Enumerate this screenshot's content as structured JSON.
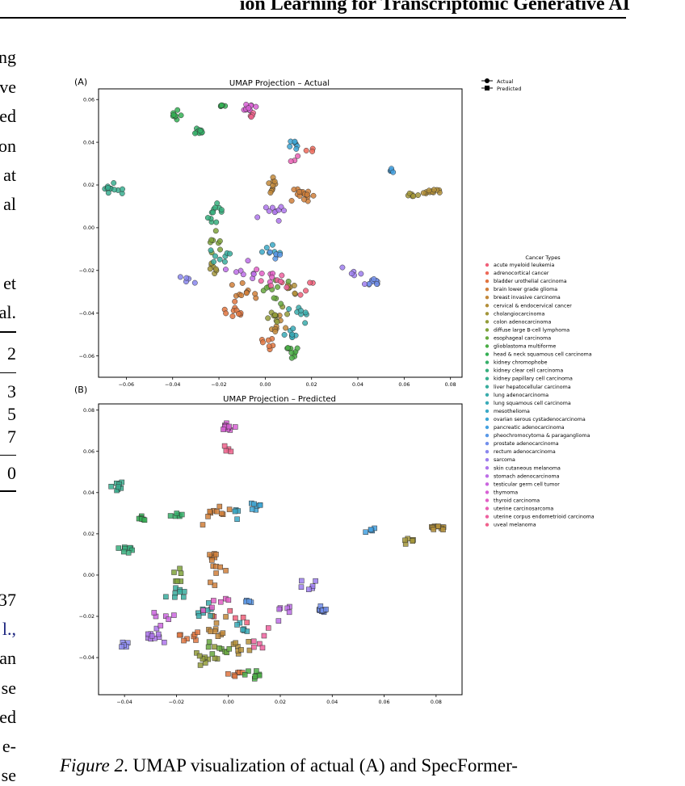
{
  "header": {
    "title": "ion Learning for Transcriptomic Generative AI"
  },
  "left_fragments": {
    "top": [
      "ng",
      "ve",
      "ed",
      "on",
      "at",
      "al"
    ],
    "middle": [
      "et",
      "al."
    ],
    "table": [
      "2",
      "3",
      "5",
      "7",
      "0"
    ],
    "bottom": [
      "37",
      "l.,",
      "an",
      "se",
      "ed",
      "e-",
      "se"
    ]
  },
  "figure": {
    "panel_a": {
      "tag": "(A)",
      "title": "UMAP Projection – Actual",
      "x_ticks": [
        "−0.06",
        "−0.04",
        "−0.02",
        "0.00",
        "0.02",
        "0.04",
        "0.06",
        "0.08"
      ],
      "y_ticks": [
        "0.06",
        "0.04",
        "0.02",
        "0.00",
        "−0.02",
        "−0.04",
        "−0.06"
      ]
    },
    "panel_b": {
      "tag": "(B)",
      "title": "UMAP Projection – Predicted",
      "x_ticks": [
        "−0.04",
        "−0.02",
        "0.00",
        "0.02",
        "0.04",
        "0.06",
        "0.08"
      ],
      "y_ticks": [
        "0.08",
        "0.06",
        "0.04",
        "0.02",
        "0.00",
        "−0.02",
        "−0.04"
      ]
    },
    "marker_legend": {
      "actual": "Actual",
      "predicted": "Predicted"
    },
    "legend": {
      "title": "Cancer Types",
      "items": [
        {
          "label": "acute myeloid leukemia",
          "color": "#f0607a"
        },
        {
          "label": "adrenocortical cancer",
          "color": "#ee6a5a"
        },
        {
          "label": "bladder urothelial carcinoma",
          "color": "#e17540"
        },
        {
          "label": "brain lower grade glioma",
          "color": "#d07f3a"
        },
        {
          "label": "breast invasive carcinoma",
          "color": "#c2883a"
        },
        {
          "label": "cervical & endocervical cancer",
          "color": "#b38f3a"
        },
        {
          "label": "cholangiocarcinoma",
          "color": "#a3963a"
        },
        {
          "label": "colon adenocarcinoma",
          "color": "#939c3a"
        },
        {
          "label": "diffuse large B-cell lymphoma",
          "color": "#7fa23a"
        },
        {
          "label": "esophageal carcinoma",
          "color": "#67a83e"
        },
        {
          "label": "glioblastoma multiforme",
          "color": "#4aad45"
        },
        {
          "label": "head & neck squamous cell carcinoma",
          "color": "#35b055"
        },
        {
          "label": "kidney chromophobe",
          "color": "#36b06a"
        },
        {
          "label": "kidney clear cell carcinoma",
          "color": "#37af7e"
        },
        {
          "label": "kidney papillary cell carcinoma",
          "color": "#38ae8f"
        },
        {
          "label": "liver hepatocellular carcinoma",
          "color": "#38ad9d"
        },
        {
          "label": "lung adenocarcinoma",
          "color": "#39acab"
        },
        {
          "label": "lung squamous cell carcinoma",
          "color": "#3aabb9"
        },
        {
          "label": "mesothelioma",
          "color": "#3ba9c7"
        },
        {
          "label": "ovarian serous cystadenocarcinoma",
          "color": "#3da6d5"
        },
        {
          "label": "pancreatic adenocarcinoma",
          "color": "#44a1e1"
        },
        {
          "label": "pheochromocytoma & paraganglioma",
          "color": "#5a99e8"
        },
        {
          "label": "prostate adenocarcinoma",
          "color": "#7390ec"
        },
        {
          "label": "rectum adenocarcinoma",
          "color": "#8a87ee"
        },
        {
          "label": "sarcoma",
          "color": "#9d7eee"
        },
        {
          "label": "skin cutaneous melanoma",
          "color": "#ae76ec"
        },
        {
          "label": "stomach adenocarcinoma",
          "color": "#bd6ee7"
        },
        {
          "label": "testicular germ cell tumor",
          "color": "#cb66df"
        },
        {
          "label": "thymoma",
          "color": "#d861d5"
        },
        {
          "label": "thyroid carcinoma",
          "color": "#e25fc7"
        },
        {
          "label": "uterine carcinosarcoma",
          "color": "#e960b4"
        },
        {
          "label": "uterine corpus endometrioid carcinoma",
          "color": "#ee619f"
        },
        {
          "label": "uveal melanoma",
          "color": "#f0628c"
        }
      ]
    }
  },
  "caption": {
    "label": "Figure 2",
    "text": ".  UMAP visualization of actual (A) and SpecFormer-"
  },
  "chart_data": [
    {
      "type": "scatter",
      "title": "UMAP Projection – Actual",
      "xlim": [
        -0.072,
        0.085
      ],
      "ylim": [
        -0.07,
        0.065
      ],
      "clusters": [
        {
          "cls": 0,
          "x": 0.01,
          "y": -0.025,
          "n": 5,
          "sx": 0.012,
          "sy": 0.004
        },
        {
          "cls": 1,
          "x": 0.018,
          "y": 0.036,
          "n": 3,
          "sx": 0.003,
          "sy": 0.002
        },
        {
          "cls": 2,
          "x": -0.013,
          "y": -0.038,
          "n": 10,
          "sx": 0.005,
          "sy": 0.003
        },
        {
          "cls": 2,
          "x": 0.0,
          "y": -0.054,
          "n": 7,
          "sx": 0.003,
          "sy": 0.003
        },
        {
          "cls": 3,
          "x": 0.016,
          "y": 0.016,
          "n": 18,
          "sx": 0.004,
          "sy": 0.003
        },
        {
          "cls": 3,
          "x": -0.008,
          "y": -0.03,
          "n": 10,
          "sx": 0.005,
          "sy": 0.003
        },
        {
          "cls": 4,
          "x": 0.003,
          "y": 0.02,
          "n": 10,
          "sx": 0.002,
          "sy": 0.004
        },
        {
          "cls": 4,
          "x": 0.005,
          "y": -0.045,
          "n": 8,
          "sx": 0.004,
          "sy": 0.005
        },
        {
          "cls": 5,
          "x": 0.072,
          "y": 0.017,
          "n": 12,
          "sx": 0.003,
          "sy": 0.001
        },
        {
          "cls": 5,
          "x": 0.012,
          "y": -0.029,
          "n": 8,
          "sx": 0.003,
          "sy": 0.002
        },
        {
          "cls": 6,
          "x": -0.023,
          "y": -0.02,
          "n": 7,
          "sx": 0.003,
          "sy": 0.003
        },
        {
          "cls": 6,
          "x": 0.063,
          "y": 0.015,
          "n": 6,
          "sx": 0.002,
          "sy": 0.001
        },
        {
          "cls": 7,
          "x": 0.005,
          "y": -0.04,
          "n": 10,
          "sx": 0.004,
          "sy": 0.004
        },
        {
          "cls": 8,
          "x": -0.022,
          "y": -0.005,
          "n": 8,
          "sx": 0.003,
          "sy": 0.006
        },
        {
          "cls": 9,
          "x": 0.004,
          "y": -0.03,
          "n": 10,
          "sx": 0.006,
          "sy": 0.005
        },
        {
          "cls": 10,
          "x": 0.012,
          "y": -0.058,
          "n": 10,
          "sx": 0.003,
          "sy": 0.003
        },
        {
          "cls": 11,
          "x": -0.018,
          "y": 0.057,
          "n": 5,
          "sx": 0.002,
          "sy": 0.001
        },
        {
          "cls": 11,
          "x": -0.038,
          "y": 0.052,
          "n": 8,
          "sx": 0.002,
          "sy": 0.003
        },
        {
          "cls": 12,
          "x": -0.028,
          "y": 0.045,
          "n": 10,
          "sx": 0.002,
          "sy": 0.002
        },
        {
          "cls": 13,
          "x": -0.022,
          "y": 0.005,
          "n": 12,
          "sx": 0.003,
          "sy": 0.005
        },
        {
          "cls": 14,
          "x": -0.066,
          "y": 0.018,
          "n": 12,
          "sx": 0.003,
          "sy": 0.002
        },
        {
          "cls": 15,
          "x": -0.02,
          "y": -0.015,
          "n": 8,
          "sx": 0.004,
          "sy": 0.004
        },
        {
          "cls": 16,
          "x": 0.014,
          "y": -0.04,
          "n": 8,
          "sx": 0.004,
          "sy": 0.005
        },
        {
          "cls": 17,
          "x": 0.012,
          "y": -0.05,
          "n": 8,
          "sx": 0.003,
          "sy": 0.003
        },
        {
          "cls": 18,
          "x": 0.002,
          "y": -0.01,
          "n": 6,
          "sx": 0.003,
          "sy": 0.004
        },
        {
          "cls": 19,
          "x": 0.013,
          "y": 0.04,
          "n": 7,
          "sx": 0.003,
          "sy": 0.003
        },
        {
          "cls": 20,
          "x": 0.054,
          "y": 0.027,
          "n": 5,
          "sx": 0.002,
          "sy": 0.001
        },
        {
          "cls": 21,
          "x": 0.004,
          "y": -0.012,
          "n": 5,
          "sx": 0.002,
          "sy": 0.002
        },
        {
          "cls": 22,
          "x": 0.046,
          "y": -0.025,
          "n": 10,
          "sx": 0.003,
          "sy": 0.002
        },
        {
          "cls": 23,
          "x": -0.034,
          "y": -0.024,
          "n": 5,
          "sx": 0.003,
          "sy": 0.002
        },
        {
          "cls": 24,
          "x": 0.037,
          "y": -0.022,
          "n": 6,
          "sx": 0.005,
          "sy": 0.004
        },
        {
          "cls": 25,
          "x": 0.004,
          "y": 0.008,
          "n": 10,
          "sx": 0.006,
          "sy": 0.006
        },
        {
          "cls": 26,
          "x": -0.01,
          "y": -0.02,
          "n": 8,
          "sx": 0.005,
          "sy": 0.004
        },
        {
          "cls": 28,
          "x": -0.007,
          "y": 0.056,
          "n": 12,
          "sx": 0.003,
          "sy": 0.002
        },
        {
          "cls": 29,
          "x": 0.0,
          "y": -0.022,
          "n": 6,
          "sx": 0.006,
          "sy": 0.004
        },
        {
          "cls": 30,
          "x": 0.012,
          "y": 0.032,
          "n": 3,
          "sx": 0.002,
          "sy": 0.002
        },
        {
          "cls": 31,
          "x": 0.004,
          "y": -0.028,
          "n": 6,
          "sx": 0.006,
          "sy": 0.004
        },
        {
          "cls": 32,
          "x": -0.005,
          "y": 0.052,
          "n": 4,
          "sx": 0.002,
          "sy": 0.002
        }
      ]
    },
    {
      "type": "scatter",
      "title": "UMAP Projection – Predicted",
      "xlim": [
        -0.05,
        0.09
      ],
      "ylim": [
        -0.058,
        0.083
      ],
      "clusters": [
        {
          "cls": 0,
          "x": 0.006,
          "y": -0.02,
          "n": 5,
          "sx": 0.01,
          "sy": 0.004
        },
        {
          "cls": 2,
          "x": -0.015,
          "y": -0.03,
          "n": 8,
          "sx": 0.004,
          "sy": 0.003
        },
        {
          "cls": 2,
          "x": 0.004,
          "y": -0.048,
          "n": 6,
          "sx": 0.003,
          "sy": 0.001
        },
        {
          "cls": 3,
          "x": -0.005,
          "y": 0.03,
          "n": 10,
          "sx": 0.004,
          "sy": 0.004
        },
        {
          "cls": 3,
          "x": -0.005,
          "y": 0.005,
          "n": 14,
          "sx": 0.003,
          "sy": 0.008
        },
        {
          "cls": 4,
          "x": -0.004,
          "y": -0.025,
          "n": 10,
          "sx": 0.004,
          "sy": 0.005
        },
        {
          "cls": 5,
          "x": 0.08,
          "y": 0.023,
          "n": 10,
          "sx": 0.003,
          "sy": 0.001
        },
        {
          "cls": 5,
          "x": 0.005,
          "y": -0.035,
          "n": 8,
          "sx": 0.004,
          "sy": 0.003
        },
        {
          "cls": 6,
          "x": 0.07,
          "y": 0.016,
          "n": 6,
          "sx": 0.003,
          "sy": 0.002
        },
        {
          "cls": 7,
          "x": -0.008,
          "y": -0.04,
          "n": 10,
          "sx": 0.004,
          "sy": 0.004
        },
        {
          "cls": 8,
          "x": -0.02,
          "y": 0.0,
          "n": 6,
          "sx": 0.003,
          "sy": 0.005
        },
        {
          "cls": 9,
          "x": -0.005,
          "y": -0.035,
          "n": 8,
          "sx": 0.005,
          "sy": 0.004
        },
        {
          "cls": 10,
          "x": 0.01,
          "y": -0.048,
          "n": 8,
          "sx": 0.003,
          "sy": 0.002
        },
        {
          "cls": 11,
          "x": -0.034,
          "y": 0.028,
          "n": 6,
          "sx": 0.002,
          "sy": 0.002
        },
        {
          "cls": 12,
          "x": -0.02,
          "y": 0.03,
          "n": 6,
          "sx": 0.003,
          "sy": 0.003
        },
        {
          "cls": 13,
          "x": -0.04,
          "y": 0.012,
          "n": 8,
          "sx": 0.003,
          "sy": 0.002
        },
        {
          "cls": 14,
          "x": -0.042,
          "y": 0.043,
          "n": 8,
          "sx": 0.003,
          "sy": 0.003
        },
        {
          "cls": 15,
          "x": -0.02,
          "y": -0.008,
          "n": 8,
          "sx": 0.003,
          "sy": 0.003
        },
        {
          "cls": 16,
          "x": -0.01,
          "y": -0.018,
          "n": 8,
          "sx": 0.004,
          "sy": 0.004
        },
        {
          "cls": 17,
          "x": 0.005,
          "y": -0.025,
          "n": 6,
          "sx": 0.003,
          "sy": 0.003
        },
        {
          "cls": 18,
          "x": 0.002,
          "y": 0.03,
          "n": 4,
          "sx": 0.003,
          "sy": 0.003
        },
        {
          "cls": 19,
          "x": 0.01,
          "y": 0.032,
          "n": 7,
          "sx": 0.002,
          "sy": 0.003
        },
        {
          "cls": 20,
          "x": 0.055,
          "y": 0.022,
          "n": 5,
          "sx": 0.002,
          "sy": 0.001
        },
        {
          "cls": 21,
          "x": 0.008,
          "y": -0.012,
          "n": 4,
          "sx": 0.003,
          "sy": 0.003
        },
        {
          "cls": 22,
          "x": 0.036,
          "y": -0.016,
          "n": 10,
          "sx": 0.002,
          "sy": 0.002
        },
        {
          "cls": 23,
          "x": -0.04,
          "y": -0.034,
          "n": 5,
          "sx": 0.002,
          "sy": 0.002
        },
        {
          "cls": 24,
          "x": 0.03,
          "y": -0.005,
          "n": 6,
          "sx": 0.003,
          "sy": 0.002
        },
        {
          "cls": 25,
          "x": -0.03,
          "y": -0.03,
          "n": 10,
          "sx": 0.005,
          "sy": 0.003
        },
        {
          "cls": 26,
          "x": 0.02,
          "y": -0.018,
          "n": 6,
          "sx": 0.004,
          "sy": 0.004
        },
        {
          "cls": 27,
          "x": -0.025,
          "y": -0.02,
          "n": 6,
          "sx": 0.004,
          "sy": 0.004
        },
        {
          "cls": 28,
          "x": 0.0,
          "y": 0.071,
          "n": 12,
          "sx": 0.002,
          "sy": 0.003
        },
        {
          "cls": 29,
          "x": -0.005,
          "y": -0.015,
          "n": 6,
          "sx": 0.005,
          "sy": 0.004
        },
        {
          "cls": 31,
          "x": 0.012,
          "y": -0.03,
          "n": 6,
          "sx": 0.004,
          "sy": 0.004
        },
        {
          "cls": 32,
          "x": 0.0,
          "y": 0.06,
          "n": 4,
          "sx": 0.002,
          "sy": 0.002
        }
      ]
    }
  ]
}
